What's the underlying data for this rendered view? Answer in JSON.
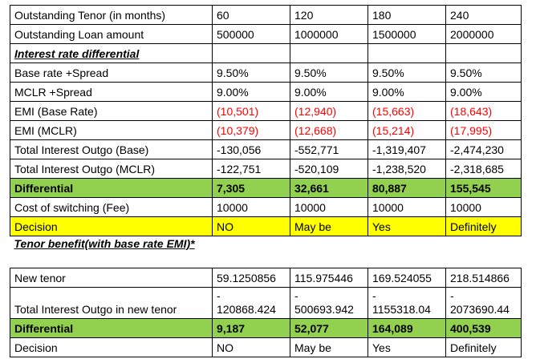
{
  "rows": {
    "tenor": {
      "label": "Outstanding Tenor (in months)",
      "v": [
        "60",
        "120",
        "180",
        "240"
      ]
    },
    "loan": {
      "label": "Outstanding Loan amount",
      "v": [
        "500000",
        "1000000",
        "1500000",
        "2000000"
      ]
    },
    "section1": {
      "label": "Interest rate differential"
    },
    "base": {
      "label": "Base rate +Spread",
      "v": [
        "9.50%",
        "9.50%",
        "9.50%",
        "9.50%"
      ]
    },
    "mclr": {
      "label": "MCLR +Spread",
      "v": [
        "9.00%",
        "9.00%",
        "9.00%",
        "9.00%"
      ]
    },
    "emi_base": {
      "label": "EMI (Base Rate)",
      "v": [
        "(10,501)",
        "(12,940)",
        "(15,663)",
        "(18,643)"
      ]
    },
    "emi_mclr": {
      "label": "EMI (MCLR)",
      "v": [
        "(10,379)",
        "(12,668)",
        "(15,214)",
        "(17,995)"
      ]
    },
    "tio_base": {
      "label": "Total Interest Outgo (Base)",
      "v": [
        "-130,056",
        "-552,771",
        "-1,319,407",
        "-2,474,230"
      ]
    },
    "tio_mclr": {
      "label": "Total Interest Outgo (MCLR)",
      "v": [
        "-122,751",
        "-520,109",
        "-1,238,520",
        "-2,318,685"
      ]
    },
    "diff1": {
      "label": "Differential",
      "v": [
        "7,305",
        "32,661",
        "80,887",
        "155,545"
      ]
    },
    "fee": {
      "label": "Cost of switching (Fee)",
      "v": [
        "10000",
        "10000",
        "10000",
        "10000"
      ]
    },
    "decision1": {
      "label": "Decision",
      "v": [
        "NO",
        "May be",
        "Yes",
        "Definitely"
      ]
    },
    "section2": {
      "label": "Tenor benefit(with base rate EMI)*"
    },
    "new_tenor": {
      "label": "New tenor",
      "v": [
        "59.1250856",
        "115.975446",
        "169.524055",
        "218.514866"
      ]
    },
    "tio_new": {
      "label": "Total Interest Outgo in new tenor",
      "sign": "-",
      "v": [
        "120868.424",
        "500693.942",
        "1155318.04",
        "2073690.44"
      ]
    },
    "diff2": {
      "label": "Differential",
      "v": [
        "9,187",
        "52,077",
        "164,089",
        "400,539"
      ]
    },
    "decision2": {
      "label": "Decision",
      "v": [
        "NO",
        "May be",
        "Yes",
        "Definitely"
      ]
    }
  }
}
